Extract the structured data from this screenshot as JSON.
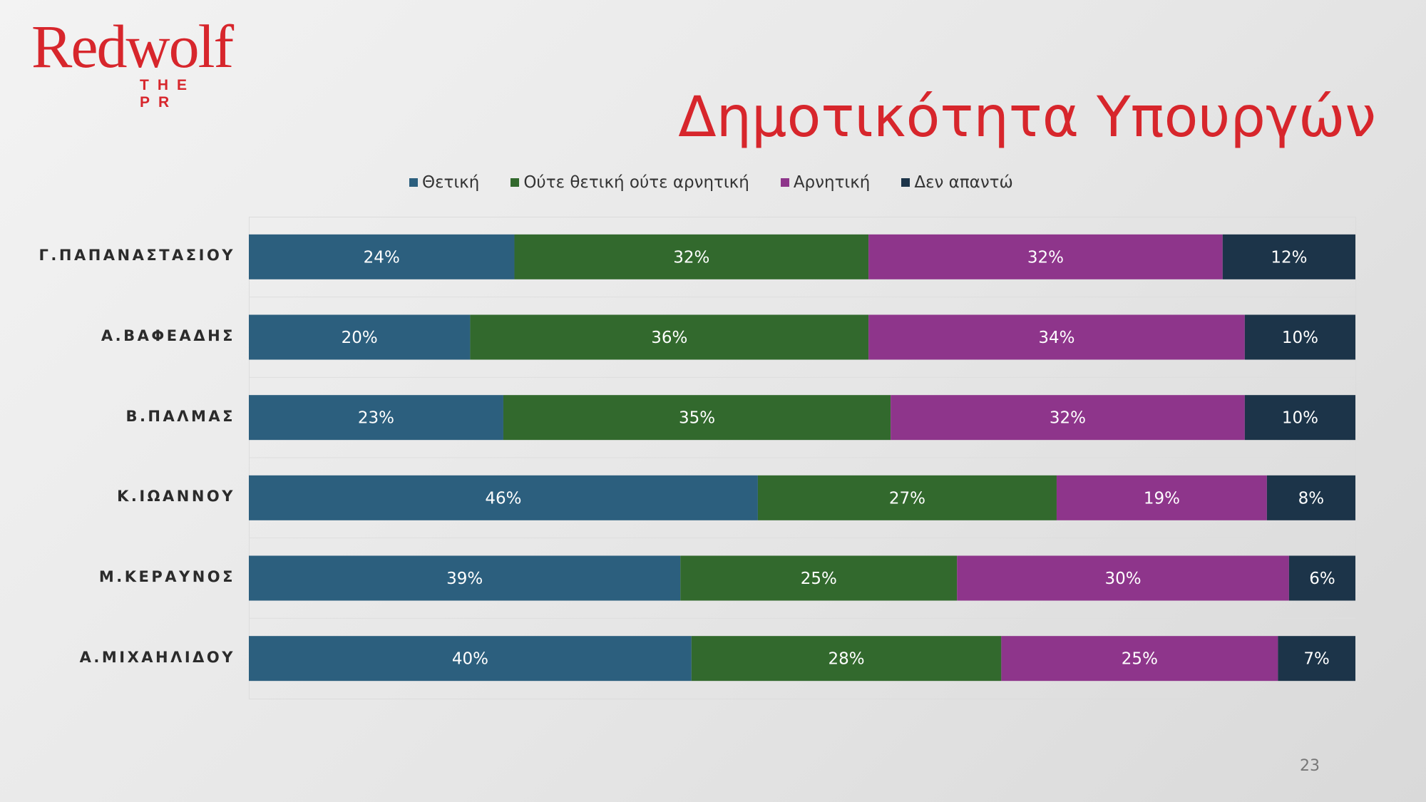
{
  "logo": {
    "name": "Redwolf",
    "tagline": "THE PR"
  },
  "title": "Δημοτικότητα Υπουργών",
  "page_number": "23",
  "chart_data": {
    "type": "bar",
    "orientation": "horizontal",
    "stacked": true,
    "percent_labels": true,
    "legend_position": "top",
    "categories": [
      "Γ.ΠΑΠΑΝΑΣΤΑΣΙΟΥ",
      "Α.ΒΑΦΕΑΔΗΣ",
      "Β.ΠΑΛΜΑΣ",
      "Κ.ΙΩΑΝΝΟΥ",
      "Μ.ΚΕΡΑΥΝΟΣ",
      "Α.ΜΙΧΑΗΛΙΔΟΥ"
    ],
    "series": [
      {
        "name": "Θετική",
        "color": "#2c5f7e",
        "values": [
          24,
          20,
          23,
          46,
          39,
          40
        ]
      },
      {
        "name": "Ούτε θετική ούτε αρνητική",
        "color": "#32692d",
        "values": [
          32,
          36,
          35,
          27,
          25,
          28
        ]
      },
      {
        "name": "Αρνητική",
        "color": "#8e358b",
        "values": [
          32,
          34,
          32,
          19,
          30,
          25
        ]
      },
      {
        "name": "Δεν απαντώ",
        "color": "#1c3449",
        "values": [
          12,
          10,
          10,
          8,
          6,
          7
        ]
      }
    ]
  }
}
